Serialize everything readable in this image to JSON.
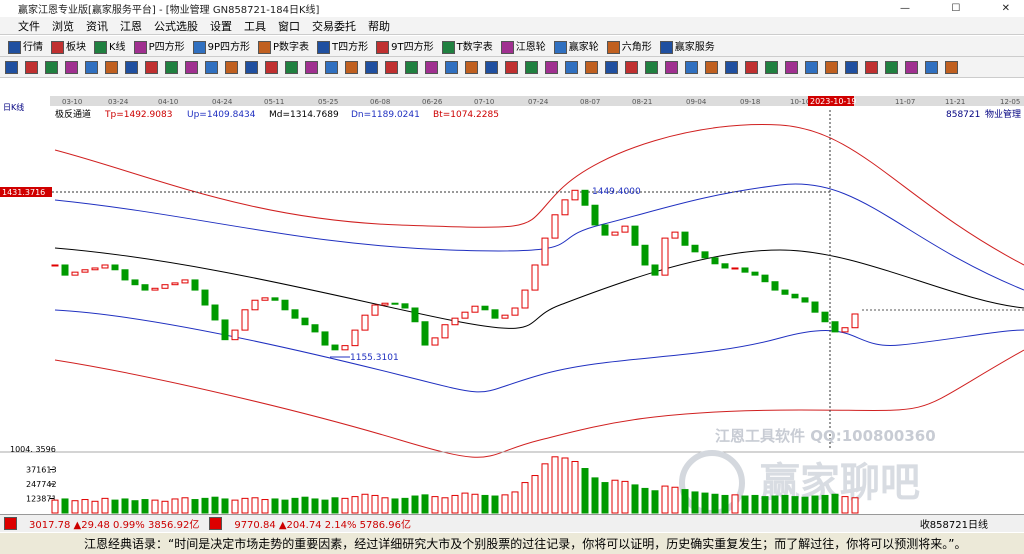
{
  "window": {
    "title": "赢家江恩专业版[赢家服务平台] - [物业管理  GN858721-184日K线]",
    "menu": [
      "文件",
      "浏览",
      "资讯",
      "江恩",
      "公式选股",
      "设置",
      "工具",
      "窗口",
      "交易委托",
      "帮助"
    ],
    "toolbar": [
      "行情",
      "板块",
      "K线",
      "P四方形",
      "9P四方形",
      "P数字表",
      "T四方形",
      "9T四方形",
      "T数字表",
      "江恩轮",
      "赢家轮",
      "六角形",
      "赢家服务"
    ]
  },
  "chart": {
    "period": "日K线",
    "dates": [
      "03-10",
      "03-24",
      "04-10",
      "04-24",
      "05-11",
      "05-25",
      "06-08",
      "06-26",
      "07-10",
      "07-24",
      "08-07",
      "08-21",
      "09-04",
      "09-18",
      "10-10",
      "11-07",
      "11-21",
      "12-05"
    ],
    "highlight_date": "2023-10-19",
    "indicator": "极反通道",
    "params": [
      "Tp=1492.9083",
      "Up=1409.8434",
      "Md=1314.7689",
      "Dn=1189.0241",
      "Bt=1074.2285"
    ],
    "code": "858721",
    "name": "物业管理",
    "cursor_price": "1431.3716",
    "high_label": "1449.4000",
    "low_label": "1155.3101",
    "vol_top": "1004. 3596",
    "watermark": "江恩工具软件  QQ:100800360",
    "watermark2": "赢家聊吧"
  },
  "chart_data": {
    "type": "candlestick",
    "closes": [
      1309,
      1292,
      1297,
      1301,
      1304,
      1309,
      1301,
      1284,
      1276,
      1267,
      1270,
      1276,
      1279,
      1284,
      1267,
      1242,
      1217,
      1184,
      1200,
      1234,
      1250,
      1254,
      1250,
      1234,
      1220,
      1209,
      1197,
      1175,
      1167,
      1174,
      1200,
      1225,
      1242,
      1245,
      1244,
      1237,
      1214,
      1175,
      1187,
      1209,
      1220,
      1230,
      1240,
      1234,
      1220,
      1225,
      1237,
      1267,
      1309,
      1354,
      1393,
      1418,
      1434,
      1409,
      1376,
      1359,
      1364,
      1374,
      1342,
      1309,
      1292,
      1354,
      1364,
      1342,
      1331,
      1321,
      1311,
      1304,
      1304,
      1297,
      1292,
      1281,
      1267,
      1260,
      1254,
      1247,
      1230,
      1214,
      1197,
      1204,
      1227
    ],
    "volumes": [
      110000,
      120000,
      105000,
      115000,
      100000,
      125000,
      110000,
      120000,
      105000,
      115000,
      110000,
      100000,
      120000,
      130000,
      115000,
      125000,
      135000,
      120000,
      110000,
      125000,
      130000,
      115000,
      120000,
      110000,
      125000,
      135000,
      120000,
      110000,
      130000,
      125000,
      140000,
      160000,
      150000,
      130000,
      120000,
      125000,
      145000,
      155000,
      140000,
      130000,
      150000,
      170000,
      160000,
      150000,
      145000,
      155000,
      180000,
      260000,
      320000,
      420000,
      480000,
      470000,
      440000,
      380000,
      300000,
      260000,
      280000,
      270000,
      240000,
      210000,
      190000,
      230000,
      220000,
      200000,
      180000,
      170000,
      160000,
      150000,
      155000,
      145000,
      150000,
      140000,
      145000,
      150000,
      140000,
      135000,
      145000,
      150000,
      160000,
      140000,
      130000
    ],
    "ylim": [
      996,
      1555
    ],
    "vlim": [
      0,
      546700
    ],
    "vticks": [
      123871,
      247742,
      371613
    ],
    "up_color": "#e00000",
    "down_color": "#009a00"
  },
  "status": {
    "index1": "3017.78 ▲29.48 0.99% 3856.92亿",
    "index2": "9770.84 ▲204.74 2.14% 5786.96亿",
    "right": "收858721日线"
  },
  "quote": "江恩经典语录：“时间是决定市场走势的重要因素，经过详细研究大市及个别股票的过往记录，你将可以证明，历史确实重复发生；而了解过往，你将可以预测将来。”。"
}
